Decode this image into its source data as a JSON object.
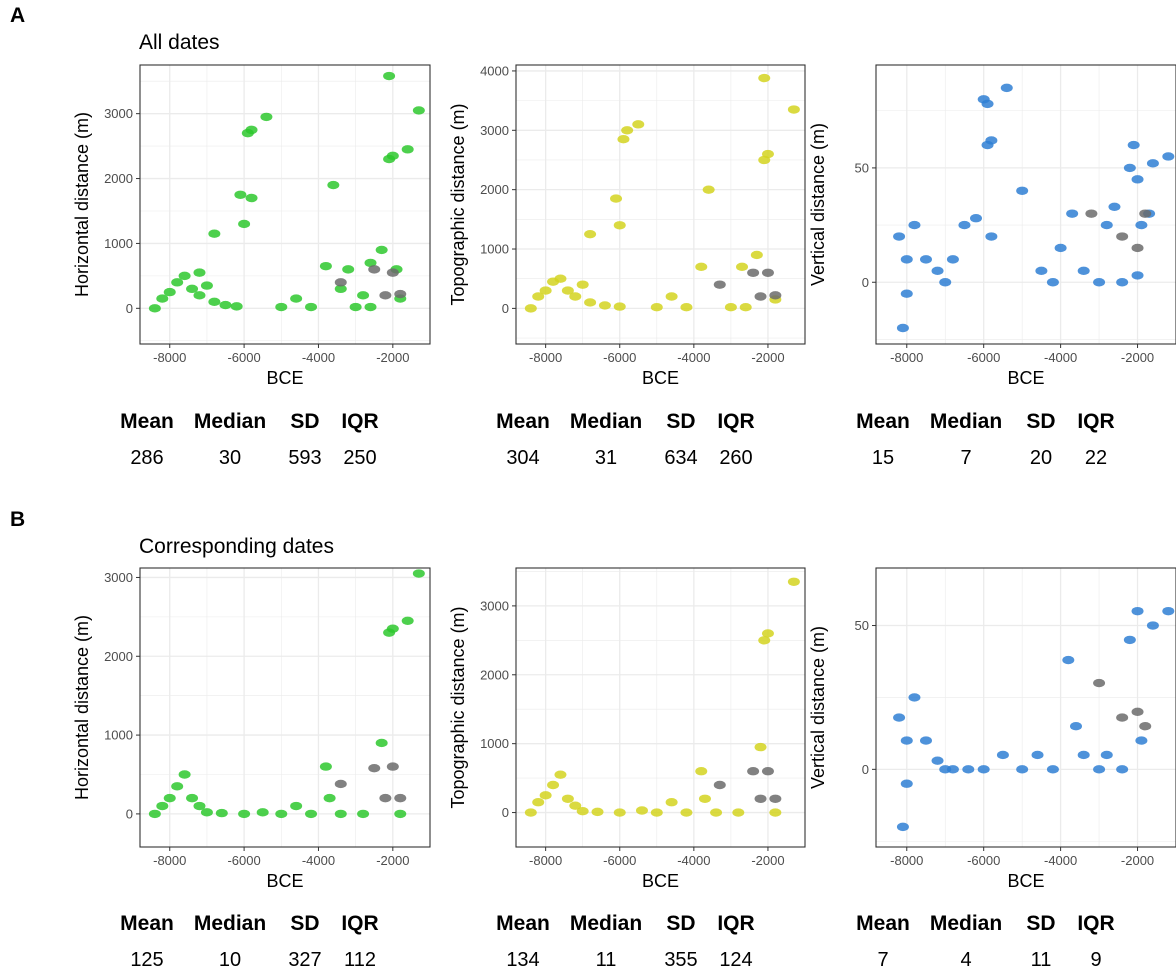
{
  "panels": [
    {
      "letter": "A",
      "title": "All dates"
    },
    {
      "letter": "B",
      "title": "Corresponding dates"
    }
  ],
  "stat_headers": [
    "Mean",
    "Median",
    "SD",
    "IQR"
  ],
  "colors": {
    "horizontal": "#2ec82e",
    "topographic": "#d4d420",
    "vertical": "#2f7fd3",
    "secondary": "#6b6b6b",
    "grid": "#ebebeb",
    "frame": "#333333"
  },
  "chart_data": [
    {
      "type": "scatter",
      "panel": "A",
      "title": "",
      "xlabel": "BCE",
      "ylabel": "Horizontal distance (m)",
      "xlim": [
        -8800,
        -1000
      ],
      "ylim": [
        -550,
        3750
      ],
      "xticks": [
        -8000,
        -6000,
        -4000,
        -2000
      ],
      "yticks": [
        0,
        1000,
        2000,
        3000
      ],
      "color": "#2ec82e",
      "stats": {
        "Mean": "286",
        "Median": "30",
        "SD": "593",
        "IQR": "250"
      },
      "series": [
        {
          "values": [
            [
              -8400,
              0
            ],
            [
              -8200,
              150
            ],
            [
              -8000,
              250
            ],
            [
              -7800,
              400
            ],
            [
              -7600,
              500
            ],
            [
              -7400,
              300
            ],
            [
              -7200,
              200
            ],
            [
              -7000,
              350
            ],
            [
              -6800,
              100
            ],
            [
              -6500,
              50
            ],
            [
              -6200,
              30
            ],
            [
              -5900,
              2700
            ],
            [
              -5800,
              2750
            ],
            [
              -6100,
              1750
            ],
            [
              -6000,
              1300
            ],
            [
              -5800,
              1700
            ],
            [
              -5400,
              2950
            ],
            [
              -5000,
              20
            ],
            [
              -4600,
              150
            ],
            [
              -4200,
              20
            ],
            [
              -3800,
              650
            ],
            [
              -3600,
              1900
            ],
            [
              -3400,
              300
            ],
            [
              -3000,
              20
            ],
            [
              -2800,
              200
            ],
            [
              -2600,
              700
            ],
            [
              -2300,
              900
            ],
            [
              -2100,
              3580
            ],
            [
              -2100,
              2300
            ],
            [
              -2000,
              2350
            ],
            [
              -1900,
              600
            ],
            [
              -1800,
              150
            ],
            [
              -1600,
              2450
            ],
            [
              -1300,
              3050
            ],
            [
              -2600,
              20
            ],
            [
              -3200,
              600
            ],
            [
              -7200,
              550
            ],
            [
              -6800,
              1150
            ]
          ]
        },
        {
          "values": [
            [
              -3400,
              400
            ],
            [
              -2500,
              600
            ],
            [
              -2000,
              550
            ],
            [
              -2200,
              200
            ],
            [
              -1800,
              220
            ]
          ]
        }
      ]
    },
    {
      "type": "scatter",
      "panel": "A",
      "title": "",
      "xlabel": "BCE",
      "ylabel": "Topographic distance (m)",
      "xlim": [
        -8800,
        -1000
      ],
      "ylim": [
        -600,
        4100
      ],
      "xticks": [
        -8000,
        -6000,
        -4000,
        -2000
      ],
      "yticks": [
        0,
        1000,
        2000,
        3000,
        4000
      ],
      "color": "#d4d420",
      "stats": {
        "Mean": "304",
        "Median": "31",
        "SD": "634",
        "IQR": "260"
      },
      "series": [
        {
          "values": [
            [
              -8400,
              0
            ],
            [
              -8200,
              200
            ],
            [
              -8000,
              300
            ],
            [
              -7800,
              450
            ],
            [
              -7600,
              500
            ],
            [
              -7400,
              300
            ],
            [
              -7200,
              200
            ],
            [
              -7000,
              400
            ],
            [
              -6800,
              100
            ],
            [
              -6400,
              50
            ],
            [
              -6000,
              30
            ],
            [
              -5900,
              2850
            ],
            [
              -5800,
              3000
            ],
            [
              -6100,
              1850
            ],
            [
              -6000,
              1400
            ],
            [
              -5500,
              3100
            ],
            [
              -5000,
              20
            ],
            [
              -4600,
              200
            ],
            [
              -4200,
              20
            ],
            [
              -3800,
              700
            ],
            [
              -3600,
              2000
            ],
            [
              -3000,
              20
            ],
            [
              -2700,
              700
            ],
            [
              -2300,
              900
            ],
            [
              -2100,
              3880
            ],
            [
              -2100,
              2500
            ],
            [
              -2000,
              2600
            ],
            [
              -1800,
              150
            ],
            [
              -1300,
              3350
            ],
            [
              -2600,
              20
            ],
            [
              -6800,
              1250
            ]
          ]
        },
        {
          "values": [
            [
              -3300,
              400
            ],
            [
              -2400,
              600
            ],
            [
              -2000,
              600
            ],
            [
              -2200,
              200
            ],
            [
              -1800,
              220
            ]
          ]
        }
      ]
    },
    {
      "type": "scatter",
      "panel": "A",
      "title": "",
      "xlabel": "BCE",
      "ylabel": "Vertical distance (m)",
      "xlim": [
        -8800,
        -1000
      ],
      "ylim": [
        -27,
        95
      ],
      "xticks": [
        -8000,
        -6000,
        -4000,
        -2000
      ],
      "yticks": [
        0,
        50
      ],
      "color": "#2f7fd3",
      "stats": {
        "Mean": "15",
        "Median": "7",
        "SD": "20",
        "IQR": "22"
      },
      "series": [
        {
          "values": [
            [
              -8100,
              -20
            ],
            [
              -8000,
              -5
            ],
            [
              -8000,
              10
            ],
            [
              -8200,
              20
            ],
            [
              -7800,
              25
            ],
            [
              -7500,
              10
            ],
            [
              -7200,
              5
            ],
            [
              -7000,
              0
            ],
            [
              -6800,
              10
            ],
            [
              -6500,
              25
            ],
            [
              -6200,
              28
            ],
            [
              -6000,
              80
            ],
            [
              -5900,
              78
            ],
            [
              -5900,
              60
            ],
            [
              -5800,
              62
            ],
            [
              -5800,
              20
            ],
            [
              -5000,
              40
            ],
            [
              -4500,
              5
            ],
            [
              -4200,
              0
            ],
            [
              -4000,
              15
            ],
            [
              -3700,
              30
            ],
            [
              -3400,
              5
            ],
            [
              -3000,
              0
            ],
            [
              -2800,
              25
            ],
            [
              -2600,
              33
            ],
            [
              -2200,
              50
            ],
            [
              -2100,
              60
            ],
            [
              -2000,
              45
            ],
            [
              -1900,
              25
            ],
            [
              -1700,
              30
            ],
            [
              -1600,
              52
            ],
            [
              -1200,
              55
            ],
            [
              -2400,
              0
            ],
            [
              -2000,
              3
            ],
            [
              -5400,
              85
            ]
          ]
        },
        {
          "values": [
            [
              -3200,
              30
            ],
            [
              -2400,
              20
            ],
            [
              -2000,
              15
            ],
            [
              -1800,
              30
            ]
          ]
        }
      ]
    },
    {
      "type": "scatter",
      "panel": "B",
      "title": "",
      "xlabel": "BCE",
      "ylabel": "Horizontal distance (m)",
      "xlim": [
        -8800,
        -1000
      ],
      "ylim": [
        -420,
        3120
      ],
      "xticks": [
        -8000,
        -6000,
        -4000,
        -2000
      ],
      "yticks": [
        0,
        1000,
        2000,
        3000
      ],
      "color": "#2ec82e",
      "stats": {
        "Mean": "125",
        "Median": "10",
        "SD": "327",
        "IQR": "112"
      },
      "series": [
        {
          "values": [
            [
              -8400,
              0
            ],
            [
              -8200,
              100
            ],
            [
              -8000,
              200
            ],
            [
              -7800,
              350
            ],
            [
              -7600,
              500
            ],
            [
              -7400,
              200
            ],
            [
              -7200,
              100
            ],
            [
              -7000,
              20
            ],
            [
              -6600,
              10
            ],
            [
              -6000,
              0
            ],
            [
              -5500,
              20
            ],
            [
              -5000,
              0
            ],
            [
              -4600,
              100
            ],
            [
              -4200,
              0
            ],
            [
              -3800,
              600
            ],
            [
              -3700,
              200
            ],
            [
              -3400,
              0
            ],
            [
              -2800,
              0
            ],
            [
              -2300,
              900
            ],
            [
              -2100,
              2300
            ],
            [
              -2000,
              2350
            ],
            [
              -1800,
              0
            ],
            [
              -1600,
              2450
            ],
            [
              -1300,
              3050
            ]
          ]
        },
        {
          "values": [
            [
              -3400,
              380
            ],
            [
              -2500,
              580
            ],
            [
              -2000,
              600
            ],
            [
              -2200,
              200
            ],
            [
              -1800,
              200
            ]
          ]
        }
      ]
    },
    {
      "type": "scatter",
      "panel": "B",
      "title": "",
      "xlabel": "BCE",
      "ylabel": "Topographic distance (m)",
      "xlim": [
        -8800,
        -1000
      ],
      "ylim": [
        -500,
        3550
      ],
      "xticks": [
        -8000,
        -6000,
        -4000,
        -2000
      ],
      "yticks": [
        0,
        1000,
        2000,
        3000
      ],
      "color": "#d4d420",
      "stats": {
        "Mean": "134",
        "Median": "11",
        "SD": "355",
        "IQR": "124"
      },
      "series": [
        {
          "values": [
            [
              -8400,
              0
            ],
            [
              -8200,
              150
            ],
            [
              -8000,
              250
            ],
            [
              -7800,
              400
            ],
            [
              -7600,
              550
            ],
            [
              -7400,
              200
            ],
            [
              -7200,
              100
            ],
            [
              -7000,
              20
            ],
            [
              -6600,
              10
            ],
            [
              -6000,
              0
            ],
            [
              -5400,
              30
            ],
            [
              -5000,
              0
            ],
            [
              -4600,
              150
            ],
            [
              -4200,
              0
            ],
            [
              -3800,
              600
            ],
            [
              -3700,
              200
            ],
            [
              -3400,
              0
            ],
            [
              -2800,
              0
            ],
            [
              -2200,
              950
            ],
            [
              -2100,
              2500
            ],
            [
              -2000,
              2600
            ],
            [
              -1800,
              0
            ],
            [
              -1300,
              3350
            ]
          ]
        },
        {
          "values": [
            [
              -3300,
              400
            ],
            [
              -2400,
              600
            ],
            [
              -2000,
              600
            ],
            [
              -2200,
              200
            ],
            [
              -1800,
              200
            ]
          ]
        }
      ]
    },
    {
      "type": "scatter",
      "panel": "B",
      "title": "",
      "xlabel": "BCE",
      "ylabel": "Vertical distance (m)",
      "xlim": [
        -8800,
        -1000
      ],
      "ylim": [
        -27,
        70
      ],
      "xticks": [
        -8000,
        -6000,
        -4000,
        -2000
      ],
      "yticks": [
        0,
        50
      ],
      "color": "#2f7fd3",
      "stats": {
        "Mean": "7",
        "Median": "4",
        "SD": "11",
        "IQR": "9"
      },
      "series": [
        {
          "values": [
            [
              -8100,
              -20
            ],
            [
              -8000,
              -5
            ],
            [
              -8000,
              10
            ],
            [
              -8200,
              18
            ],
            [
              -7800,
              25
            ],
            [
              -7500,
              10
            ],
            [
              -7200,
              3
            ],
            [
              -7000,
              0
            ],
            [
              -6800,
              0
            ],
            [
              -6400,
              0
            ],
            [
              -6000,
              0
            ],
            [
              -5500,
              5
            ],
            [
              -5000,
              0
            ],
            [
              -4600,
              5
            ],
            [
              -4200,
              0
            ],
            [
              -3800,
              38
            ],
            [
              -3600,
              15
            ],
            [
              -3400,
              5
            ],
            [
              -3000,
              0
            ],
            [
              -2800,
              5
            ],
            [
              -2400,
              0
            ],
            [
              -2200,
              45
            ],
            [
              -2000,
              55
            ],
            [
              -1900,
              10
            ],
            [
              -1600,
              50
            ],
            [
              -1200,
              55
            ]
          ]
        },
        {
          "values": [
            [
              -3000,
              30
            ],
            [
              -2400,
              18
            ],
            [
              -2000,
              20
            ],
            [
              -1800,
              15
            ]
          ]
        }
      ]
    }
  ]
}
